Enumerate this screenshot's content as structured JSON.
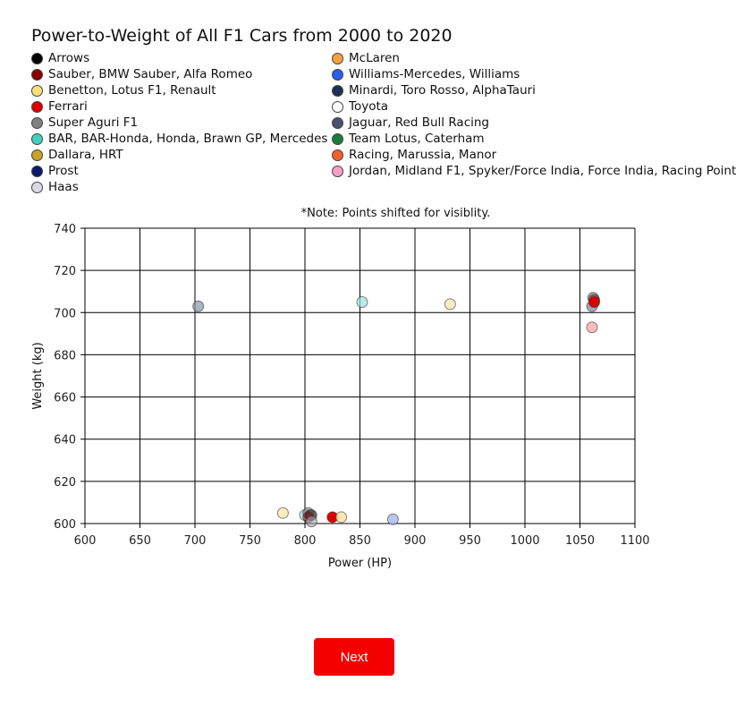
{
  "chart_data": {
    "type": "scatter",
    "title": "Power-to-Weight of All F1 Cars from 2000 to 2020",
    "note": "*Note: Points shifted for visiblity.",
    "xlabel": "Power (HP)",
    "ylabel": "Weight (kg)",
    "xlim": [
      600,
      1100
    ],
    "ylim": [
      600,
      740
    ],
    "xticks": [
      600,
      650,
      700,
      750,
      800,
      850,
      900,
      950,
      1000,
      1050,
      1100
    ],
    "yticks": [
      600,
      620,
      640,
      660,
      680,
      700,
      720,
      740
    ],
    "grid": true,
    "legend_columns": [
      [
        {
          "name": "Arrows",
          "color": "#000000"
        },
        {
          "name": "Sauber, BMW Sauber, Alfa Romeo",
          "color": "#8b0000"
        },
        {
          "name": "Benetton, Lotus F1, Renault",
          "color": "#f5e07a"
        },
        {
          "name": "Ferrari",
          "color": "#dd0000"
        },
        {
          "name": "Super Aguri F1",
          "color": "#808080"
        },
        {
          "name": "BAR, BAR-Honda, Honda, Brawn GP, Mercedes",
          "color": "#40d0c0"
        },
        {
          "name": "Dallara, HRT",
          "color": "#c9a227"
        },
        {
          "name": "Prost",
          "color": "#0a1a6b"
        },
        {
          "name": "Haas",
          "color": "#d8d8e0"
        }
      ],
      [
        {
          "name": "McLaren",
          "color": "#f7a040"
        },
        {
          "name": "Williams-Mercedes, Williams",
          "color": "#2a5ee8"
        },
        {
          "name": "Minardi, Toro Rosso, AlphaTauri",
          "color": "#1e3050"
        },
        {
          "name": "Toyota",
          "color": "#ffffff"
        },
        {
          "name": "Jaguar, Red Bull Racing",
          "color": "#4a5070"
        },
        {
          "name": "Team Lotus, Caterham",
          "color": "#1e7a3a"
        },
        {
          "name": "Racing, Marussia, Manor",
          "color": "#f06030"
        },
        {
          "name": "Jordan, Midland F1, Spyker/Force India, Force India, Racing Point",
          "color": "#f5a0c8"
        }
      ]
    ],
    "points": [
      {
        "x": 703,
        "y": 703,
        "color": "#8a93a8",
        "opacity": 0.7
      },
      {
        "x": 852,
        "y": 705,
        "color": "#9ee0d8",
        "opacity": 0.7
      },
      {
        "x": 932,
        "y": 704,
        "color": "#fbe8b0",
        "opacity": 0.8
      },
      {
        "x": 1062,
        "y": 707,
        "color": "#808080",
        "opacity": 0.7
      },
      {
        "x": 1063,
        "y": 706,
        "color": "#8b0000",
        "opacity": 0.5
      },
      {
        "x": 1061,
        "y": 703,
        "color": "#4a5070",
        "opacity": 0.5
      },
      {
        "x": 1063,
        "y": 705,
        "color": "#dd0000",
        "opacity": 1.0
      },
      {
        "x": 1061,
        "y": 693,
        "color": "#f5a0a0",
        "opacity": 0.7
      },
      {
        "x": 780,
        "y": 605,
        "color": "#fbe8b0",
        "opacity": 0.8
      },
      {
        "x": 800,
        "y": 604,
        "color": "#9ee0d8",
        "opacity": 0.7
      },
      {
        "x": 803,
        "y": 605,
        "color": "#808080",
        "opacity": 0.6
      },
      {
        "x": 806,
        "y": 604,
        "color": "#808080",
        "opacity": 0.6
      },
      {
        "x": 805,
        "y": 604,
        "color": "#000000",
        "opacity": 0.4
      },
      {
        "x": 803,
        "y": 603,
        "color": "#8b0000",
        "opacity": 0.5
      },
      {
        "x": 806,
        "y": 601,
        "color": "#a0a0b0",
        "opacity": 0.6
      },
      {
        "x": 825,
        "y": 603,
        "color": "#dd0000",
        "opacity": 1.0
      },
      {
        "x": 833,
        "y": 603,
        "color": "#fbe0a0",
        "opacity": 0.8
      },
      {
        "x": 880,
        "y": 602,
        "color": "#a8b8f0",
        "opacity": 0.8
      }
    ]
  },
  "controls": {
    "next_label": "Next"
  }
}
